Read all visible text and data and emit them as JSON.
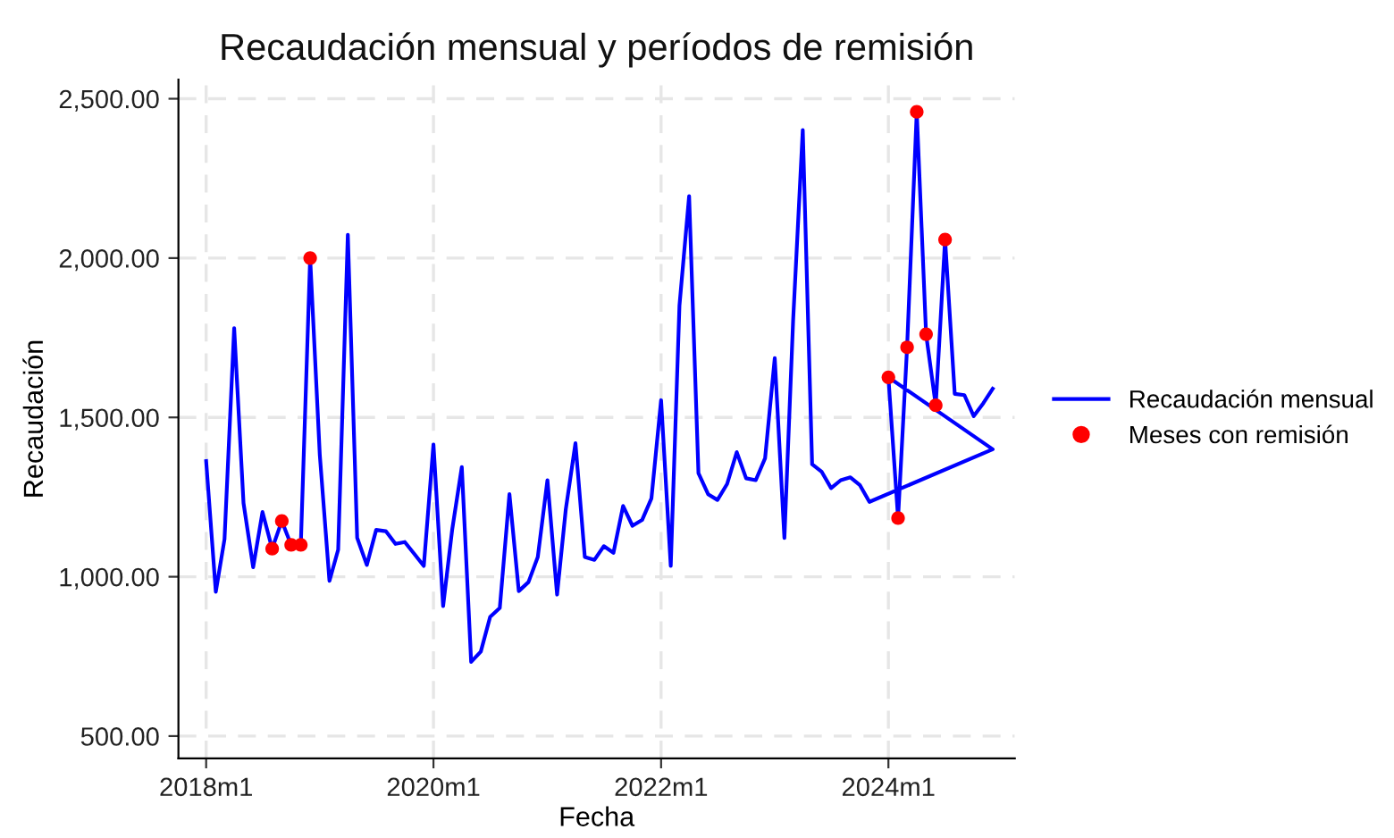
{
  "chart_data": {
    "type": "line",
    "title": "Recaudación mensual y períodos de remisión",
    "xlabel": "Fecha",
    "ylabel": "Recaudación",
    "xlim": [
      "2017-10-04",
      "2025-02-10"
    ],
    "ylim": [
      430,
      2560
    ],
    "xticks": [
      {
        "value": "2018-01",
        "label": "2018m1"
      },
      {
        "value": "2020-01",
        "label": "2020m1"
      },
      {
        "value": "2022-01",
        "label": "2022m1"
      },
      {
        "value": "2024-01",
        "label": "2024m1"
      }
    ],
    "yticks": [
      {
        "value": 500,
        "label": "500.00"
      },
      {
        "value": 1000,
        "label": "1,000.00"
      },
      {
        "value": 1500,
        "label": "1,500.00"
      },
      {
        "value": 2000,
        "label": "2,000.00"
      },
      {
        "value": 2500,
        "label": "2,500.00"
      }
    ],
    "grid": true,
    "legend": "right",
    "series": [
      {
        "name": "Recaudación mensual",
        "color": "#0000ff",
        "marker": "none",
        "line_style": "solid",
        "x": [
          "2018-01",
          "2018-02",
          "2018-03",
          "2018-04",
          "2018-05",
          "2018-06",
          "2018-07",
          "2018-08",
          "2018-09",
          "2018-10",
          "2018-11",
          "2018-12",
          "2019-01",
          "2019-02",
          "2019-03",
          "2019-04",
          "2019-05",
          "2019-06",
          "2019-07",
          "2019-08",
          "2019-09",
          "2019-10",
          "2019-11",
          "2019-12",
          "2020-01",
          "2020-02",
          "2020-03",
          "2020-04",
          "2020-05",
          "2020-06",
          "2020-07",
          "2020-08",
          "2020-09",
          "2020-10",
          "2020-11",
          "2020-12",
          "2021-01",
          "2021-02",
          "2021-03",
          "2021-04",
          "2021-05",
          "2021-06",
          "2021-07",
          "2021-08",
          "2021-09",
          "2021-10",
          "2021-11",
          "2021-12",
          "2022-01",
          "2022-02",
          "2022-03",
          "2022-04",
          "2022-05",
          "2022-06",
          "2022-07",
          "2022-08",
          "2022-09",
          "2022-10",
          "2022-11",
          "2022-12",
          "2023-01",
          "2023-02",
          "2023-03",
          "2023-04",
          "2023-05",
          "2023-06",
          "2023-07",
          "2023-08",
          "2023-09",
          "2023-10",
          "2023-11",
          "2024-12",
          "2024-01",
          "2024-02",
          "2024-03",
          "2024-04",
          "2024-05",
          "2024-06",
          "2024-07",
          "2024-08",
          "2024-09",
          "2024-10",
          "2024-11",
          "2024-12"
        ],
        "values": [
          1363,
          953,
          1118,
          1780,
          1231,
          1030,
          1203,
          1088,
          1175,
          1100,
          1100,
          2000,
          1382,
          987,
          1085,
          2073,
          1122,
          1037,
          1147,
          1143,
          1103,
          1109,
          1071,
          1034,
          1415,
          908,
          1147,
          1344,
          733,
          765,
          874,
          902,
          1259,
          955,
          983,
          1062,
          1303,
          944,
          1212,
          1419,
          1062,
          1053,
          1096,
          1075,
          1222,
          1160,
          1178,
          1246,
          1554,
          1034,
          1851,
          2194,
          1325,
          1259,
          1241,
          1291,
          1391,
          1309,
          1303,
          1372,
          1686,
          1122,
          1804,
          2402,
          1353,
          1329,
          1278,
          1303,
          1312,
          1288,
          1235,
          1400,
          1626,
          1184,
          1720,
          2459,
          1761,
          1538,
          2058,
          1574,
          1570,
          1504,
          1545,
          1590
        ]
      },
      {
        "name": "Meses con remisión",
        "type": "scatter",
        "color": "#ff0000",
        "marker": "circle",
        "x": [
          "2018-08",
          "2018-09",
          "2018-10",
          "2018-11",
          "2018-12",
          "2024-01",
          "2024-02",
          "2024-03",
          "2024-04",
          "2024-05",
          "2024-06",
          "2024-07"
        ],
        "values": [
          1088,
          1175,
          1100,
          1100,
          2000,
          1626,
          1184,
          1720,
          2459,
          1761,
          1538,
          2058
        ]
      }
    ]
  }
}
